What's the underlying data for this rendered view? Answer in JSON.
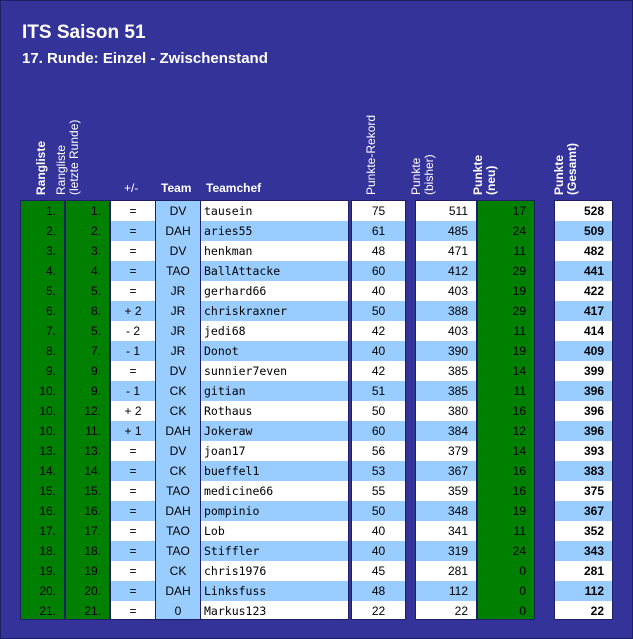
{
  "title": "ITS Saison 51",
  "subtitle": "17. Runde: Einzel - Zwischenstand",
  "headers": {
    "rangliste": "Rangliste",
    "rangliste_letzte_1": "Rangliste",
    "rangliste_letzte_2": "(letzte Runde)",
    "plusminus": "+/-",
    "team": "Team",
    "teamchef": "Teamchef",
    "punkte_rekord": "Punkte-Rekord",
    "punkte_bisher_1": "Punkte",
    "punkte_bisher_2": "(bisher)",
    "punkte_neu_1": "Punkte",
    "punkte_neu_2": "(neu)",
    "punkte_gesamt_1": "Punkte",
    "punkte_gesamt_2": "(Gesamt)"
  },
  "rows": [
    {
      "rank": "1.",
      "prev": "1.",
      "diff": "=",
      "team": "DV",
      "chef": "tausein",
      "record": "75",
      "before": "511",
      "new": "17",
      "total": "528"
    },
    {
      "rank": "2.",
      "prev": "2.",
      "diff": "=",
      "team": "DAH",
      "chef": "aries55",
      "record": "61",
      "before": "485",
      "new": "24",
      "total": "509"
    },
    {
      "rank": "3.",
      "prev": "3.",
      "diff": "=",
      "team": "DV",
      "chef": "henkman",
      "record": "48",
      "before": "471",
      "new": "11",
      "total": "482"
    },
    {
      "rank": "4.",
      "prev": "4.",
      "diff": "=",
      "team": "TAO",
      "chef": "BallAttacke",
      "record": "60",
      "before": "412",
      "new": "29",
      "total": "441"
    },
    {
      "rank": "5.",
      "prev": "5.",
      "diff": "=",
      "team": "JR",
      "chef": "gerhard66",
      "record": "40",
      "before": "403",
      "new": "19",
      "total": "422"
    },
    {
      "rank": "6.",
      "prev": "8.",
      "diff": "+ 2",
      "team": "JR",
      "chef": "chriskraxner",
      "record": "50",
      "before": "388",
      "new": "29",
      "total": "417"
    },
    {
      "rank": "7.",
      "prev": "5.",
      "diff": "- 2",
      "team": "JR",
      "chef": "jedi68",
      "record": "42",
      "before": "403",
      "new": "11",
      "total": "414"
    },
    {
      "rank": "8.",
      "prev": "7.",
      "diff": "- 1",
      "team": "JR",
      "chef": "Donot",
      "record": "40",
      "before": "390",
      "new": "19",
      "total": "409"
    },
    {
      "rank": "9.",
      "prev": "9.",
      "diff": "=",
      "team": "DV",
      "chef": "sunnier7even",
      "record": "42",
      "before": "385",
      "new": "14",
      "total": "399"
    },
    {
      "rank": "10.",
      "prev": "9.",
      "diff": "- 1",
      "team": "CK",
      "chef": "gitian",
      "record": "51",
      "before": "385",
      "new": "11",
      "total": "396"
    },
    {
      "rank": "10.",
      "prev": "12.",
      "diff": "+ 2",
      "team": "CK",
      "chef": "Rothaus",
      "record": "50",
      "before": "380",
      "new": "16",
      "total": "396"
    },
    {
      "rank": "10.",
      "prev": "11.",
      "diff": "+ 1",
      "team": "DAH",
      "chef": "Jokeraw",
      "record": "60",
      "before": "384",
      "new": "12",
      "total": "396"
    },
    {
      "rank": "13.",
      "prev": "13.",
      "diff": "=",
      "team": "DV",
      "chef": "joan17",
      "record": "56",
      "before": "379",
      "new": "14",
      "total": "393"
    },
    {
      "rank": "14.",
      "prev": "14.",
      "diff": "=",
      "team": "CK",
      "chef": "bueffel1",
      "record": "53",
      "before": "367",
      "new": "16",
      "total": "383"
    },
    {
      "rank": "15.",
      "prev": "15.",
      "diff": "=",
      "team": "TAO",
      "chef": "medicine66",
      "record": "55",
      "before": "359",
      "new": "16",
      "total": "375"
    },
    {
      "rank": "16.",
      "prev": "16.",
      "diff": "=",
      "team": "DAH",
      "chef": "pompinio",
      "record": "50",
      "before": "348",
      "new": "19",
      "total": "367"
    },
    {
      "rank": "17.",
      "prev": "17.",
      "diff": "=",
      "team": "TAO",
      "chef": "Lob",
      "record": "40",
      "before": "341",
      "new": "11",
      "total": "352"
    },
    {
      "rank": "18.",
      "prev": "18.",
      "diff": "=",
      "team": "TAO",
      "chef": "Stiffler",
      "record": "40",
      "before": "319",
      "new": "24",
      "total": "343"
    },
    {
      "rank": "19.",
      "prev": "19.",
      "diff": "=",
      "team": "CK",
      "chef": "chris1976",
      "record": "45",
      "before": "281",
      "new": "0",
      "total": "281"
    },
    {
      "rank": "20.",
      "prev": "20.",
      "diff": "=",
      "team": "DAH",
      "chef": "Linksfuss",
      "record": "48",
      "before": "112",
      "new": "0",
      "total": "112"
    },
    {
      "rank": "21.",
      "prev": "21.",
      "diff": "=",
      "team": "0",
      "chef": "Markus123",
      "record": "22",
      "before": "22",
      "new": "0",
      "total": "22"
    }
  ]
}
